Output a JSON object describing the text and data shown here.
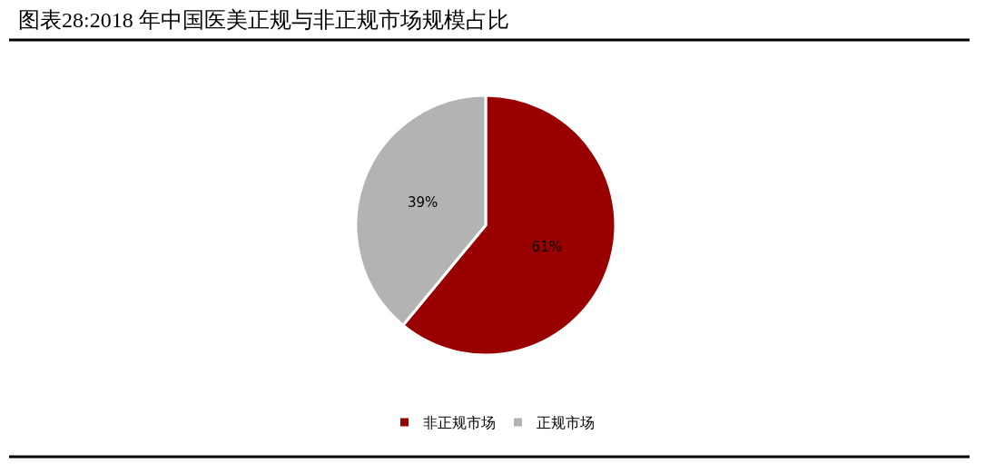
{
  "chart_data": {
    "type": "pie",
    "title": "图表28:2018 年中国医美正规与非正规市场规模占比",
    "categories": [
      "非正规市场",
      "正规市场"
    ],
    "values": [
      61,
      39
    ],
    "colors": [
      "#990000",
      "#b3b3b3"
    ],
    "value_labels": [
      "61%",
      "39%"
    ],
    "legend": "bottom"
  }
}
